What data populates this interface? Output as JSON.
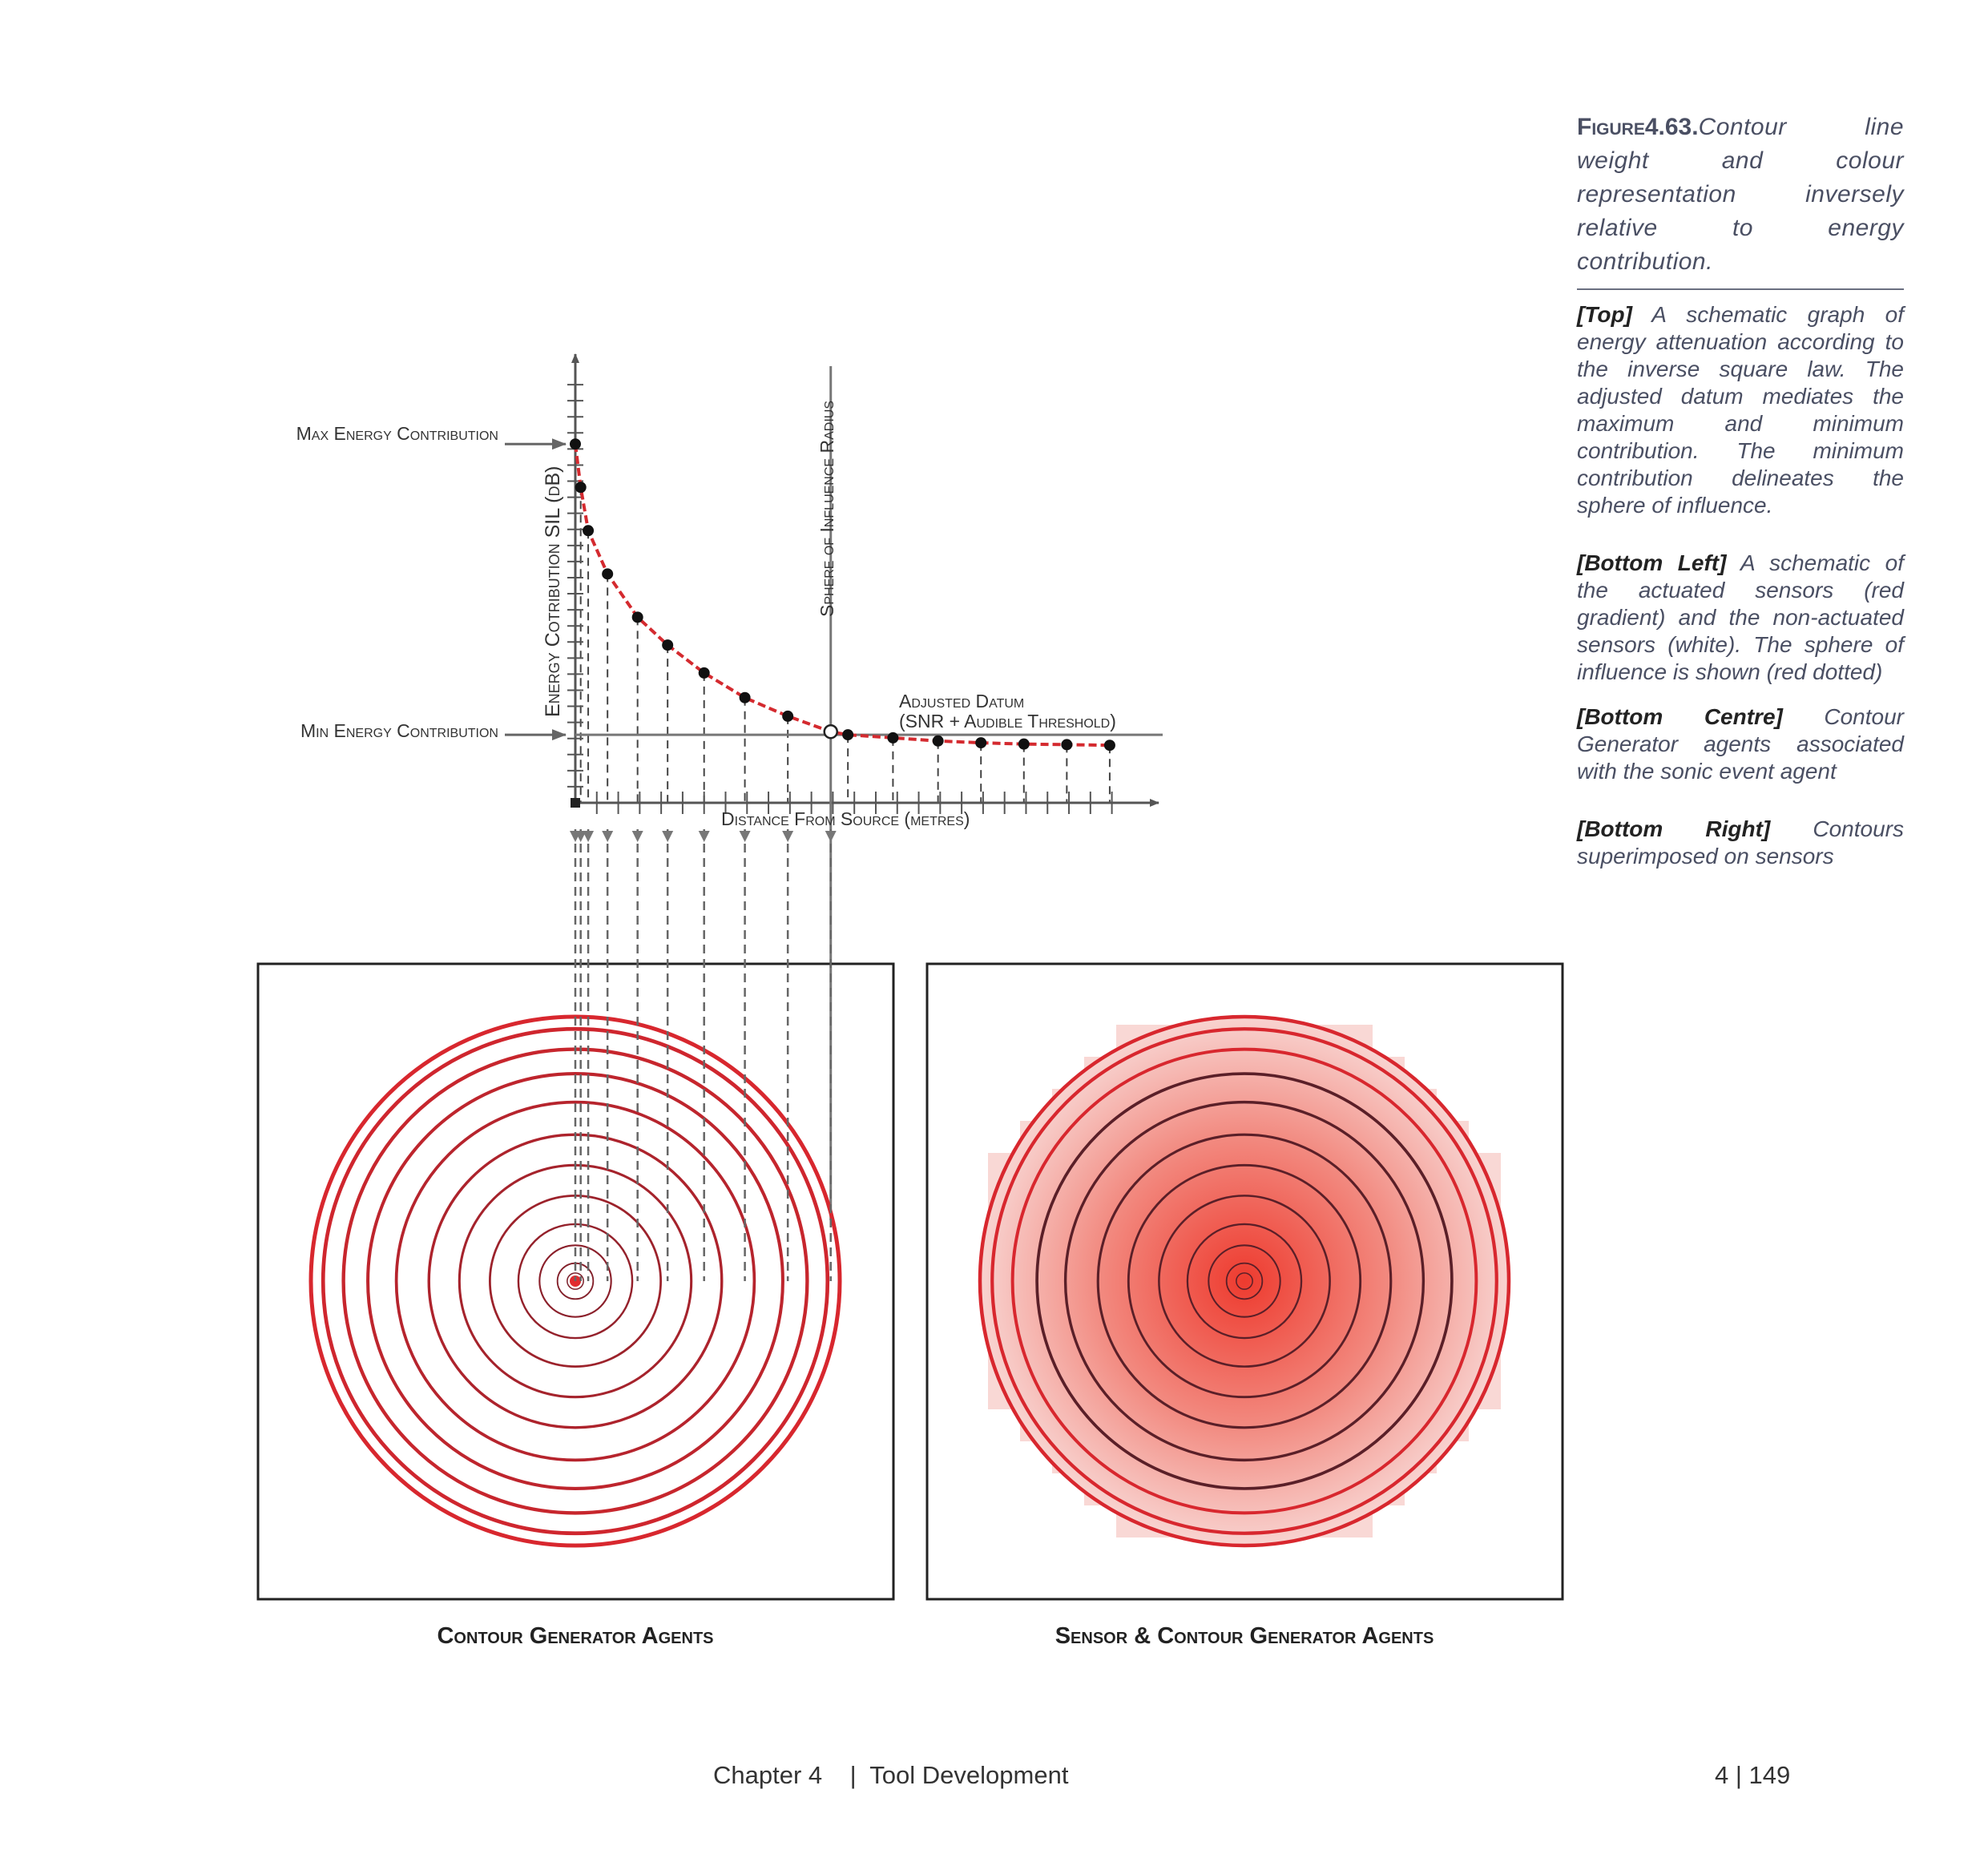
{
  "caption": {
    "figure_label": "Figure4.63.",
    "title": "Contour line weight and colour representation inversely relative to energy contribution.",
    "top_tag": "[Top]",
    "top_text": "A schematic graph of energy attenuation according to the inverse square law. The adjusted datum mediates the maximum and minimum contribution. The minimum contribution delineates the sphere of influence.",
    "bottom_left_tag": "[Bottom Left]",
    "bottom_left_text": "A schematic of the actuated sensors (red gradient) and the non-actuated sensors (white). The sphere of influence is shown (red dotted)",
    "bottom_centre_tag": "[Bottom Centre]",
    "bottom_centre_text": "Contour Generator agents associated with the sonic event agent",
    "bottom_right_tag": "[Bottom Right]",
    "bottom_right_text": "Contours superimposed on sensors"
  },
  "chart_data": {
    "type": "line",
    "ylabel": "Energy Cotribution SIL (dB)",
    "xlabel": "Distance From Source (metres)",
    "vline_label": "Sphere of Influence Radius",
    "datum_label_line1": "Adjusted Datum",
    "datum_label_line2": "(SNR + Audible Threshold)",
    "max_label": "Max Energy Contribution",
    "min_label": "Min Energy Contribution",
    "x": [
      0,
      0.25,
      0.6,
      1.5,
      2.9,
      4.3,
      6.0,
      7.9,
      9.9,
      11.9,
      12.7,
      14.8,
      16.9,
      18.9,
      20.9,
      22.9,
      24.9
    ],
    "y": [
      58,
      51,
      44,
      37,
      30,
      25.5,
      21,
      17,
      14,
      11.5,
      11,
      10.5,
      10,
      9.7,
      9.5,
      9.4,
      9.3
    ],
    "datum_y": 11,
    "sphere_x": 11.9,
    "xlim": [
      0,
      25.5
    ],
    "ylim": [
      0,
      68
    ],
    "x_tick_step": 1,
    "y_tick_step": 2.6,
    "colors": {
      "curve": "#d42a2f",
      "axis": "#555555",
      "drop": "#444444"
    }
  },
  "panels": {
    "left_label": "Contour Generator Agents",
    "right_label": "Sensor & Contour Generator Agents",
    "ring_radii_fraction": [
      0.02,
      0.044,
      0.088,
      0.14,
      0.21,
      0.285,
      0.36,
      0.44,
      0.51,
      0.57,
      0.62,
      0.65,
      1.0
    ],
    "ring_color_far": "#d8272e",
    "ring_color_near": "#7a1f2a",
    "gradient_center": "#ee3b2f",
    "gradient_edge": "#f8d3d0"
  },
  "footer": {
    "chapter": "Chapter 4    |  Tool Development",
    "page": "4 | 149"
  }
}
